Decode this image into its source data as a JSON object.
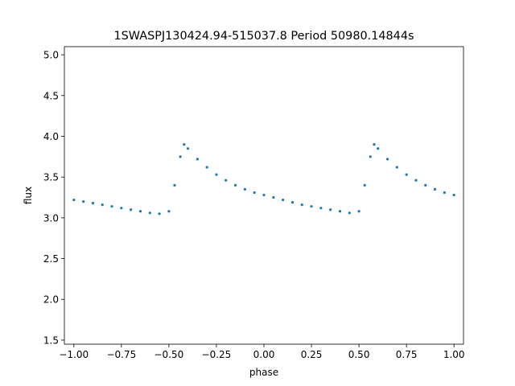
{
  "chart_data": {
    "type": "scatter",
    "title": "1SWASPJ130424.94-515037.8 Period 50980.14844s",
    "xlabel": "phase",
    "ylabel": "flux",
    "xlim": [
      -1.05,
      1.05
    ],
    "ylim": [
      1.45,
      5.1
    ],
    "xticks": [
      -1.0,
      -0.75,
      -0.5,
      -0.25,
      0.0,
      0.25,
      0.5,
      0.75,
      1.0
    ],
    "xtick_labels": [
      "−1.00",
      "−0.75",
      "−0.50",
      "−0.25",
      "0.00",
      "0.25",
      "0.50",
      "0.75",
      "1.00"
    ],
    "yticks": [
      1.5,
      2.0,
      2.5,
      3.0,
      3.5,
      4.0,
      4.5,
      5.0
    ],
    "ytick_labels": [
      "1.5",
      "2.0",
      "2.5",
      "3.0",
      "3.5",
      "4.0",
      "4.5",
      "5.0"
    ],
    "grid": false,
    "point_color": "#1f77b4",
    "series": [
      {
        "x": [
          -1.0,
          -0.95,
          -0.9,
          -0.85,
          -0.8,
          -0.75,
          -0.7,
          -0.65,
          -0.6,
          -0.55,
          -0.5,
          -0.47,
          -0.44,
          -0.42,
          -0.4,
          -0.35,
          -0.3,
          -0.25,
          -0.2,
          -0.15,
          -0.1,
          -0.05,
          0.0,
          0.05,
          0.1,
          0.15,
          0.2,
          0.25,
          0.3,
          0.35,
          0.4,
          0.45,
          0.5,
          0.53,
          0.56,
          0.58,
          0.6,
          0.65,
          0.7,
          0.75,
          0.8,
          0.85,
          0.9,
          0.95,
          1.0
        ],
        "y": [
          3.22,
          3.2,
          3.18,
          3.16,
          3.14,
          3.12,
          3.1,
          3.08,
          3.06,
          3.05,
          3.08,
          3.4,
          3.75,
          3.9,
          3.85,
          3.72,
          3.62,
          3.53,
          3.46,
          3.4,
          3.35,
          3.31,
          3.28,
          3.25,
          3.22,
          3.19,
          3.16,
          3.14,
          3.12,
          3.1,
          3.08,
          3.06,
          3.08,
          3.4,
          3.75,
          3.9,
          3.85,
          3.72,
          3.62,
          3.53,
          3.46,
          3.4,
          3.35,
          3.31,
          3.28
        ]
      }
    ]
  }
}
